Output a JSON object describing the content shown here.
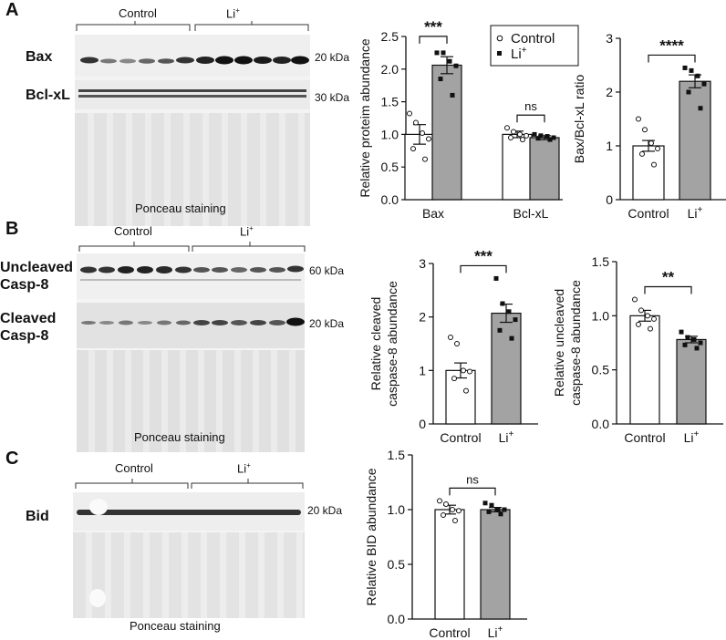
{
  "panels": {
    "A": {
      "letter": "A",
      "control_label": "Control",
      "li_label": "Li",
      "li_sup": "+",
      "bands": [
        {
          "name": "Bax",
          "kda": "20 kDa"
        },
        {
          "name": "Bcl-xL",
          "kda": "30 kDa"
        }
      ],
      "ponceau_caption": "Ponceau staining"
    },
    "B": {
      "letter": "B",
      "control_label": "Control",
      "li_label": "Li",
      "li_sup": "+",
      "bands": [
        {
          "name_line1": "Uncleaved",
          "name_line2": "Casp-8",
          "kda": "60 kDa"
        },
        {
          "name_line1": "Cleaved",
          "name_line2": "Casp-8",
          "kda": "20 kDa"
        }
      ],
      "ponceau_caption": "Ponceau staining"
    },
    "C": {
      "letter": "C",
      "control_label": "Control",
      "li_label": "Li",
      "li_sup": "+",
      "bands": [
        {
          "name": "Bid",
          "kda": "20 kDa"
        }
      ],
      "ponceau_caption": "Ponceau staining"
    }
  },
  "colors": {
    "control_bar": "#ffffff",
    "li_bar": "#a3a3a3",
    "axis": "#111111"
  },
  "chart_data": [
    {
      "id": "A1",
      "type": "bar",
      "ylabel": "Relative proteim abundance",
      "ylim": [
        0,
        2.5
      ],
      "yticks": [
        "0.0",
        "0.5",
        "1.0",
        "1.5",
        "2.0",
        "2.5"
      ],
      "categories": [
        "Bax",
        "Bcl-xL"
      ],
      "series": [
        {
          "name": "Control",
          "values": [
            1.0,
            1.0
          ],
          "sem": [
            0.15,
            0.05
          ],
          "points": [
            [
              1.32,
              1.18,
              1.02,
              0.93,
              0.78,
              0.62
            ],
            [
              1.1,
              1.04,
              1.0,
              0.98,
              0.95,
              0.92
            ]
          ]
        },
        {
          "name": "Li+",
          "values": [
            2.06,
            0.95
          ],
          "sem": [
            0.13,
            0.03
          ],
          "points": [
            [
              2.25,
              2.25,
              2.12,
              2.05,
              1.85,
              1.6
            ],
            [
              1.0,
              0.98,
              0.97,
              0.95,
              0.94,
              0.92
            ]
          ]
        }
      ],
      "legend": [
        {
          "marker": "○",
          "label": "Control"
        },
        {
          "marker": "■",
          "label": "Li+"
        }
      ],
      "legend_position": "top-right",
      "significance": [
        "***",
        "ns"
      ]
    },
    {
      "id": "A2",
      "type": "bar",
      "ylabel": "Bax/Bcl-xL ratio",
      "ylim": [
        0,
        3
      ],
      "yticks": [
        "0",
        "1",
        "2",
        "3"
      ],
      "categories": [
        "Control",
        "Li+"
      ],
      "values": [
        1.0,
        2.2
      ],
      "sem": [
        0.1,
        0.12
      ],
      "points": [
        [
          1.5,
          1.3,
          1.05,
          0.95,
          0.85,
          0.65
        ],
        [
          2.45,
          2.4,
          2.3,
          2.15,
          2.0,
          1.7
        ]
      ],
      "significance": "****"
    },
    {
      "id": "B1",
      "type": "bar",
      "ylabel": [
        "Relative cleaved",
        "caspase-8  abundance"
      ],
      "ylim": [
        0,
        3
      ],
      "yticks": [
        "0",
        "1",
        "2",
        "3"
      ],
      "categories": [
        "Control",
        "Li+"
      ],
      "values": [
        1.0,
        2.07
      ],
      "sem": [
        0.14,
        0.17
      ],
      "points": [
        [
          1.62,
          1.5,
          1.0,
          0.98,
          0.85,
          0.62
        ],
        [
          2.72,
          2.25,
          2.1,
          1.95,
          1.75,
          1.6
        ]
      ],
      "significance": "***"
    },
    {
      "id": "B2",
      "type": "bar",
      "ylabel": [
        "Relative uncleaved",
        "caspase-8 abundance"
      ],
      "ylim": [
        0,
        1.5
      ],
      "yticks": [
        "0.0",
        "0.5",
        "1.0",
        "1.5"
      ],
      "categories": [
        "Control",
        "Li+"
      ],
      "values": [
        1.0,
        0.78
      ],
      "sem": [
        0.05,
        0.03
      ],
      "points": [
        [
          1.15,
          1.05,
          1.0,
          0.97,
          0.92,
          0.88
        ],
        [
          0.85,
          0.8,
          0.78,
          0.75,
          0.73,
          0.7
        ]
      ],
      "significance": "**"
    },
    {
      "id": "C1",
      "type": "bar",
      "ylabel": "Relative BID abundance",
      "ylim": [
        0,
        1.5
      ],
      "yticks": [
        "0.0",
        "0.5",
        "1.0",
        "1.5"
      ],
      "categories": [
        "Control",
        "Li+"
      ],
      "values": [
        1.0,
        1.0
      ],
      "sem": [
        0.04,
        0.02
      ],
      "points": [
        [
          1.08,
          1.05,
          1.0,
          0.99,
          0.95,
          0.9
        ],
        [
          1.06,
          1.04,
          1.0,
          1.0,
          0.98,
          0.96
        ]
      ],
      "significance": "ns"
    }
  ]
}
